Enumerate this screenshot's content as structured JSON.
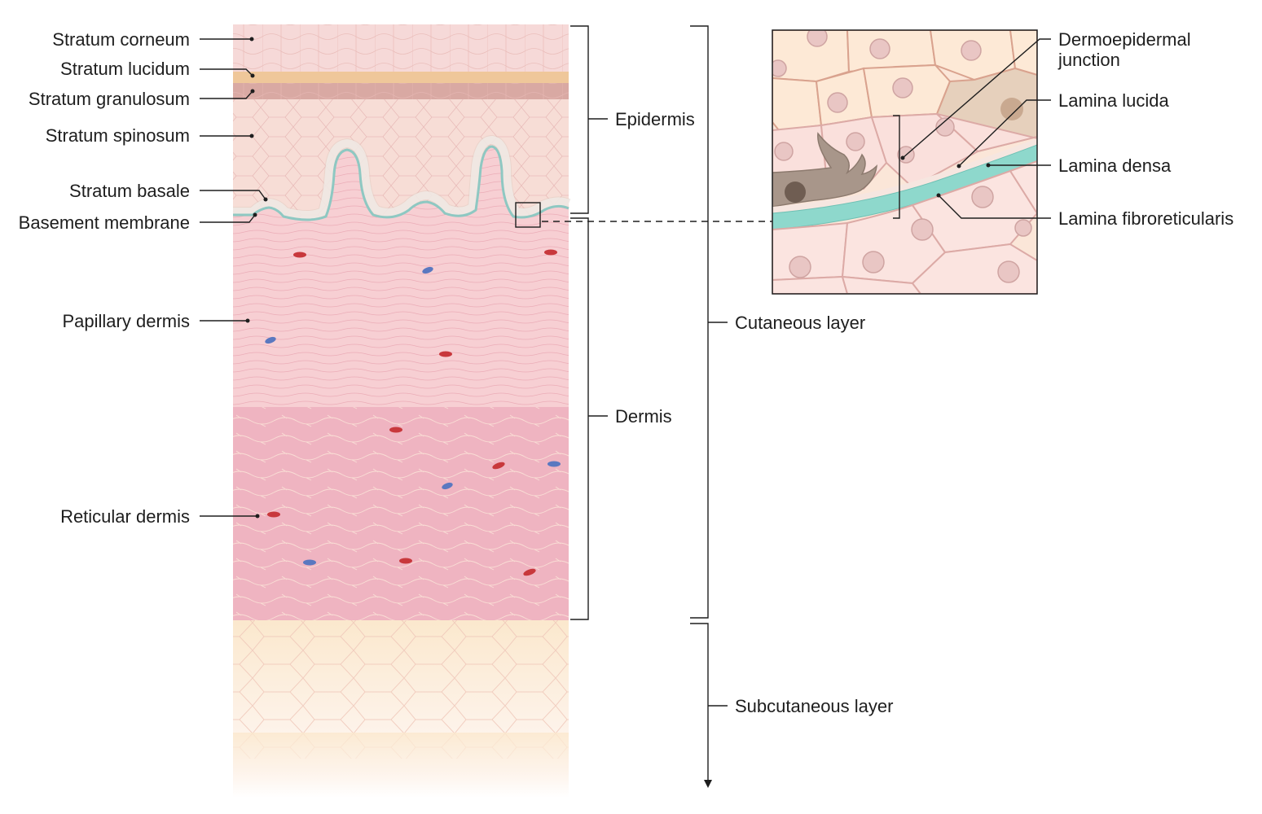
{
  "left_labels": {
    "stratum_corneum": "Stratum corneum",
    "stratum_lucidum": "Stratum lucidum",
    "stratum_granulosum": "Stratum granulosum",
    "stratum_spinosum": "Stratum spinosum",
    "stratum_basale": "Stratum basale",
    "basement_membrane": "Basement membrane",
    "papillary_dermis": "Papillary dermis",
    "reticular_dermis": "Reticular dermis"
  },
  "bracket_labels": {
    "epidermis": "Epidermis",
    "dermis": "Dermis",
    "cutaneous_layer": "Cutaneous layer",
    "subcutaneous_layer": "Subcutaneous layer"
  },
  "inset_labels": {
    "dermoepidermal_junction_line1": "Dermoepidermal",
    "dermoepidermal_junction_line2": "junction",
    "lamina_lucida": "Lamina lucida",
    "lamina_densa": "Lamina densa",
    "lamina_fibroreticularis": "Lamina fibroreticularis"
  },
  "colors": {
    "corneum": "#f6d9d8",
    "lucidum": "#efc79a",
    "granulosum": "#d9a9a3",
    "spinosum": "#f7ddd6",
    "papillary_dermis": "#f7cfd3",
    "reticular_dermis": "#efb4c1",
    "subcutaneous": "#fbe8cd",
    "basement_membrane": "#8ec8c2",
    "lamina_densa": "#8ed8cc",
    "melanocyte": "#a8968a",
    "vessel_red": "#c8383c",
    "vessel_blue": "#5a78c0"
  }
}
